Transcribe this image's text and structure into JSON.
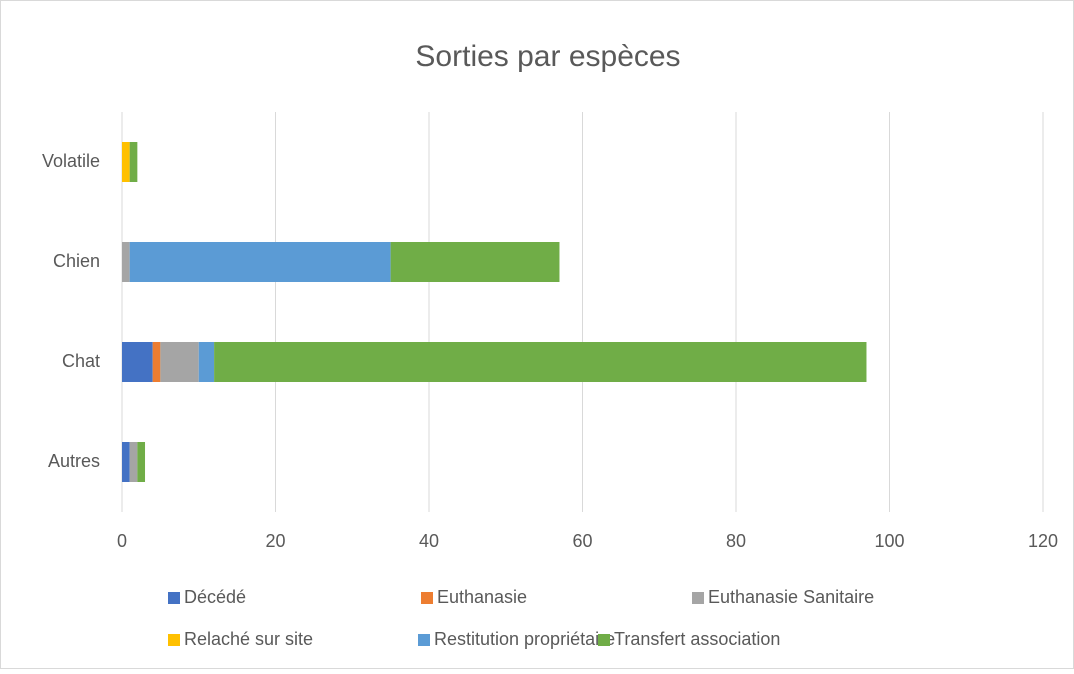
{
  "chart_data": {
    "type": "stacked-barh",
    "title": "Sorties par espèces",
    "categories": [
      "Autres",
      "Chat",
      "Chien",
      "Volatile"
    ],
    "series": [
      {
        "name": "Décédé",
        "color": "#4472c4",
        "values": [
          1,
          4,
          0,
          0
        ]
      },
      {
        "name": "Euthanasie",
        "color": "#ed7d31",
        "values": [
          0,
          1,
          0,
          0
        ]
      },
      {
        "name": "Euthanasie Sanitaire",
        "color": "#a5a5a5",
        "values": [
          1,
          5,
          1,
          0
        ]
      },
      {
        "name": "Relaché sur site",
        "color": "#ffc000",
        "values": [
          0,
          0,
          0,
          1
        ]
      },
      {
        "name": "Restitution propriétaire",
        "color": "#5b9bd5",
        "values": [
          0,
          2,
          34,
          0
        ]
      },
      {
        "name": "Transfert association",
        "color": "#70ad47",
        "values": [
          1,
          85,
          22,
          1
        ]
      }
    ],
    "xlim": [
      0,
      120
    ],
    "xticks": [
      0,
      20,
      40,
      60,
      80,
      100,
      120
    ],
    "grid": true,
    "legend": "bottom"
  }
}
